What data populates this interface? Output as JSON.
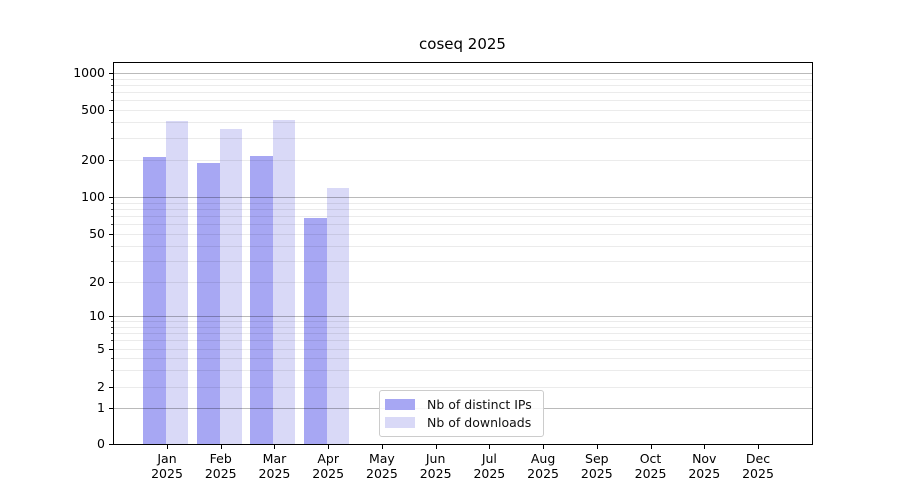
{
  "title": "coseq 2025",
  "chart_data": {
    "type": "bar",
    "title": "coseq 2025",
    "months": [
      "Jan",
      "Feb",
      "Mar",
      "Apr",
      "May",
      "Jun",
      "Jul",
      "Aug",
      "Sep",
      "Oct",
      "Nov",
      "Dec"
    ],
    "year": "2025",
    "categories": [
      "Jan 2025",
      "Feb 2025",
      "Mar 2025",
      "Apr 2025",
      "May 2025",
      "Jun 2025",
      "Jul 2025",
      "Aug 2025",
      "Sep 2025",
      "Oct 2025",
      "Nov 2025",
      "Dec 2025"
    ],
    "series": [
      {
        "name": "Nb of distinct IPs",
        "color": "#a7a7f3",
        "values": [
          210,
          190,
          215,
          68,
          null,
          null,
          null,
          null,
          null,
          null,
          null,
          null
        ]
      },
      {
        "name": "Nb of downloads",
        "color": "#d9d9f7",
        "values": [
          410,
          355,
          415,
          118,
          null,
          null,
          null,
          null,
          null,
          null,
          null,
          null
        ]
      }
    ],
    "xlabel": "",
    "ylabel": "",
    "yscale": "symlog",
    "yticks": [
      0,
      1,
      2,
      5,
      10,
      20,
      50,
      100,
      200,
      500,
      1000
    ],
    "ylim": [
      0,
      1230
    ],
    "grid": "horizontal, major and minor",
    "legend_position": "lower center inside plot",
    "colors": {
      "major_grid": "#bbbbbb",
      "minor_grid": "#ebebeb",
      "spine": "#000000",
      "text": "#000000",
      "legend_border": "#cccccc",
      "background": "#ffffff"
    }
  }
}
